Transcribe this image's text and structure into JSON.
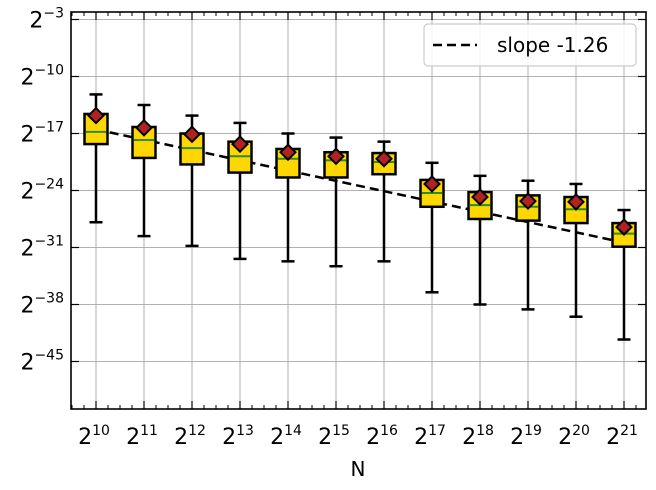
{
  "chart_data": {
    "type": "boxplot",
    "xlabel": "N",
    "ylabel": "",
    "title": "",
    "x_scale": "log2",
    "y_scale": "log2",
    "x_exponents": [
      10,
      11,
      12,
      13,
      14,
      15,
      16,
      17,
      18,
      19,
      20,
      21
    ],
    "x_tick_labels": [
      {
        "base": "2",
        "exp": "10"
      },
      {
        "base": "2",
        "exp": "11"
      },
      {
        "base": "2",
        "exp": "12"
      },
      {
        "base": "2",
        "exp": "13"
      },
      {
        "base": "2",
        "exp": "14"
      },
      {
        "base": "2",
        "exp": "15"
      },
      {
        "base": "2",
        "exp": "16"
      },
      {
        "base": "2",
        "exp": "17"
      },
      {
        "base": "2",
        "exp": "18"
      },
      {
        "base": "2",
        "exp": "19"
      },
      {
        "base": "2",
        "exp": "20"
      },
      {
        "base": "2",
        "exp": "21"
      }
    ],
    "y_ticks": [
      -3,
      -10,
      -17,
      -24,
      -31,
      -38,
      -45
    ],
    "y_tick_labels": [
      {
        "base": "2",
        "exp": "−3"
      },
      {
        "base": "2",
        "exp": "−10"
      },
      {
        "base": "2",
        "exp": "−17"
      },
      {
        "base": "2",
        "exp": "−24"
      },
      {
        "base": "2",
        "exp": "−31"
      },
      {
        "base": "2",
        "exp": "−38"
      },
      {
        "base": "2",
        "exp": "−45"
      }
    ],
    "ylim_log2": [
      -51,
      -2
    ],
    "grid": true,
    "legend": {
      "position": "top-right",
      "entries": [
        "slope -1.26"
      ]
    },
    "series_boxes": [
      {
        "x_exp": 10,
        "whisker_low": -27.9,
        "q1": -18.3,
        "median": -16.8,
        "q3": -14.6,
        "whisker_high": -12.2,
        "mean": -14.8
      },
      {
        "x_exp": 11,
        "whisker_low": -29.6,
        "q1": -20.0,
        "median": -17.8,
        "q3": -16.2,
        "whisker_high": -13.5,
        "mean": -16.3
      },
      {
        "x_exp": 12,
        "whisker_low": -30.8,
        "q1": -20.8,
        "median": -18.8,
        "q3": -17.0,
        "whisker_high": -14.8,
        "mean": -17.1
      },
      {
        "x_exp": 13,
        "whisker_low": -32.4,
        "q1": -21.8,
        "median": -19.8,
        "q3": -18.0,
        "whisker_high": -15.7,
        "mean": -18.3
      },
      {
        "x_exp": 14,
        "whisker_low": -32.7,
        "q1": -22.4,
        "median": -20.1,
        "q3": -18.9,
        "whisker_high": -17.0,
        "mean": -19.3
      },
      {
        "x_exp": 15,
        "whisker_low": -33.3,
        "q1": -22.4,
        "median": -20.3,
        "q3": -19.3,
        "whisker_high": -17.5,
        "mean": -19.8
      },
      {
        "x_exp": 16,
        "whisker_low": -32.7,
        "q1": -22.0,
        "median": -20.5,
        "q3": -19.4,
        "whisker_high": -18.0,
        "mean": -20.1
      },
      {
        "x_exp": 17,
        "whisker_low": -36.5,
        "q1": -26.0,
        "median": -24.3,
        "q3": -22.7,
        "whisker_high": -20.6,
        "mean": -23.2
      },
      {
        "x_exp": 18,
        "whisker_low": -38.0,
        "q1": -27.5,
        "median": -25.8,
        "q3": -24.2,
        "whisker_high": -22.2,
        "mean": -24.8
      },
      {
        "x_exp": 19,
        "whisker_low": -38.6,
        "q1": -27.7,
        "median": -26.0,
        "q3": -24.6,
        "whisker_high": -22.8,
        "mean": -25.3
      },
      {
        "x_exp": 20,
        "whisker_low": -39.5,
        "q1": -28.0,
        "median": -26.3,
        "q3": -24.8,
        "whisker_high": -23.2,
        "mean": -25.4
      },
      {
        "x_exp": 21,
        "whisker_low": -42.3,
        "q1": -30.9,
        "median": -29.3,
        "q3": -28.0,
        "whisker_high": -26.4,
        "mean": -28.5
      }
    ],
    "fit_line": {
      "label": "slope -1.26",
      "slope": -1.26,
      "x_exp": [
        10,
        21
      ],
      "y_exp": [
        -16.5,
        -30.4
      ],
      "style": "dashed",
      "color": "#000000"
    },
    "colors": {
      "box_fill": "#FFD700",
      "box_edge": "#000000",
      "median": "#2E8B22",
      "mean_marker": "#B22222",
      "grid": "#B0B0B0"
    }
  }
}
